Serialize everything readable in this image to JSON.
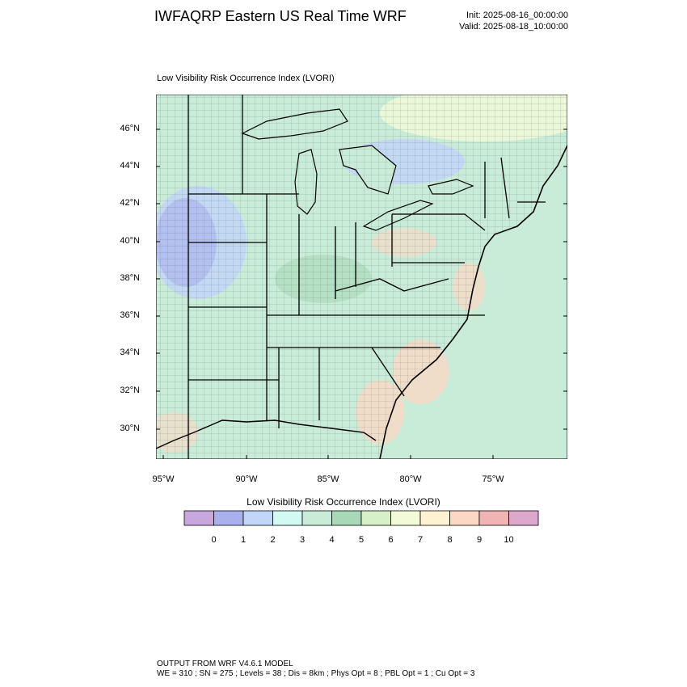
{
  "header": {
    "title": "IWFAQRP Eastern US Real Time WRF",
    "init": "Init: 2025-08-16_00:00:00",
    "valid": "Valid: 2025-08-18_10:00:00"
  },
  "map": {
    "field_title": "Low Visibility Risk Occurrence Index   (LVORI)",
    "lat_labels": [
      "46°N",
      "44°N",
      "42°N",
      "40°N",
      "38°N",
      "36°N",
      "34°N",
      "32°N",
      "30°N"
    ],
    "lon_labels": [
      "95°W",
      "90°W",
      "85°W",
      "80°W",
      "75°W"
    ],
    "dominant_category": 4,
    "water_category": 4,
    "regions": [
      {
        "name": "central-plains-low-risk",
        "category": 2
      },
      {
        "name": "iowa-low-risk",
        "category": 1
      },
      {
        "name": "lake-huron-ontario-low-risk",
        "category": 2
      },
      {
        "name": "canada-elevated-risk",
        "category": 7
      },
      {
        "name": "carolina-coast-high-risk",
        "category": 9
      },
      {
        "name": "georgia-coast-high-risk",
        "category": 9
      },
      {
        "name": "pennsylvania-high-risk",
        "category": 9
      },
      {
        "name": "chesapeake-high-risk",
        "category": 9
      },
      {
        "name": "ohio-valley-moderate",
        "category": 5
      },
      {
        "name": "gulf-coast-texas-high-risk",
        "category": 9
      }
    ]
  },
  "colorbar": {
    "title": "Low Visibility Risk Occurrence Index  (LVORI)",
    "labels": [
      "0",
      "1",
      "2",
      "3",
      "4",
      "5",
      "6",
      "7",
      "8",
      "9",
      "10"
    ],
    "colors": [
      "#c8a8dc",
      "#aab0ee",
      "#c2d6f8",
      "#d2faf2",
      "#c8ecd8",
      "#a8d8b8",
      "#d8f0c8",
      "#f2fad8",
      "#fdf2d2",
      "#fcd8c4",
      "#f0b4b4",
      "#dca8cc"
    ]
  },
  "footer": {
    "line1": "OUTPUT FROM WRF V4.6.1 MODEL",
    "line2": "WE = 310 ; SN = 275 ; Levels = 38 ; Dis = 8km ; Phys Opt = 8 ; PBL Opt = 1 ; Cu Opt = 3"
  }
}
